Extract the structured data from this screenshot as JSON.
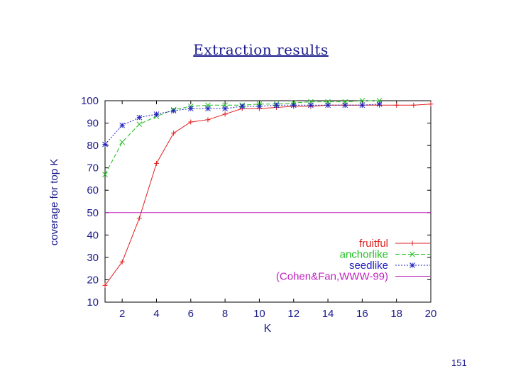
{
  "slide": {
    "number": "151"
  },
  "chart_data": {
    "type": "line",
    "title": "Extraction results",
    "xlabel": "K",
    "ylabel": "coverage for top K",
    "xlim": [
      1,
      20
    ],
    "ylim": [
      10,
      100
    ],
    "xticks": [
      2,
      4,
      6,
      8,
      10,
      12,
      14,
      16,
      18,
      20
    ],
    "yticks": [
      10,
      20,
      30,
      40,
      50,
      60,
      70,
      80,
      90,
      100
    ],
    "legend_position": "bottom-right",
    "series": [
      {
        "name": "fruitful",
        "color": "#e02020",
        "marker": "+",
        "dash": "",
        "x": [
          1,
          2,
          3,
          4,
          5,
          6,
          7,
          8,
          9,
          10,
          11,
          12,
          13,
          14,
          15,
          16,
          17,
          18,
          19,
          20
        ],
        "y": [
          17.5,
          28,
          47.5,
          72,
          85.5,
          90.5,
          91.5,
          94,
          96.5,
          96.5,
          97,
          97.5,
          97.5,
          98,
          98,
          98,
          98,
          98,
          98,
          98.5
        ]
      },
      {
        "name": "anchorlike",
        "color": "#20c020",
        "marker": "x",
        "dash": "6,3",
        "x": [
          1,
          2,
          3,
          4,
          5,
          6,
          7,
          8,
          9,
          10,
          11,
          12,
          13,
          14,
          15,
          16,
          17
        ],
        "y": [
          67,
          81.5,
          89.5,
          93,
          96,
          97.5,
          98,
          98,
          98,
          98.5,
          98.5,
          99,
          99.5,
          99.5,
          99.5,
          100,
          100
        ]
      },
      {
        "name": "seedlike",
        "color": "#2020c0",
        "marker": "*",
        "dash": "2,2",
        "x": [
          1,
          2,
          3,
          4,
          5,
          6,
          7,
          8,
          9,
          10,
          11,
          12,
          13,
          14,
          15,
          16,
          17
        ],
        "y": [
          80.5,
          89,
          92.5,
          94,
          95.5,
          96.5,
          96.5,
          96.5,
          97.5,
          97.5,
          98,
          98,
          98,
          98,
          98,
          98,
          98.5
        ]
      },
      {
        "name": "(Cohen&Fan,WWW-99)",
        "color": "#c020c0",
        "marker": "",
        "dash": "",
        "x": [
          1,
          20
        ],
        "y": [
          50,
          50
        ]
      }
    ]
  }
}
